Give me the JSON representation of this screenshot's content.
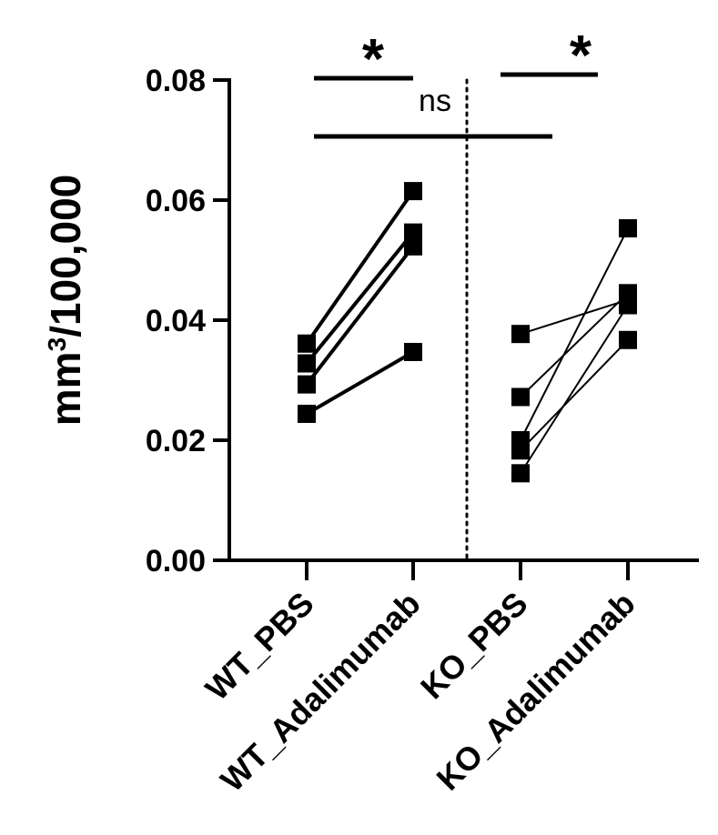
{
  "chart_data": {
    "type": "scatter",
    "subtype": "paired-dot-plot",
    "ylabel": "mm³/100,000",
    "ylabel_main": "mm",
    "ylabel_sup": "3",
    "ylabel_rest": "/100,000",
    "ylim": [
      0,
      0.08
    ],
    "yticks": [
      0.0,
      0.02,
      0.04,
      0.06,
      0.08
    ],
    "ytick_labels": [
      "0.00",
      "0.02",
      "0.04",
      "0.06",
      "0.08"
    ],
    "categories": [
      "WT_PBS",
      "WT_Adalimumab",
      "KO_PBS",
      "KO_Adalimumab"
    ],
    "groups": [
      {
        "name": "WT",
        "pairs": [
          [
            0.0361,
            0.0615
          ],
          [
            0.0328,
            0.0546
          ],
          [
            0.0293,
            0.0523
          ],
          [
            0.0244,
            0.0347
          ]
        ]
      },
      {
        "name": "KO",
        "pairs": [
          [
            0.0377,
            0.0434
          ],
          [
            0.0272,
            0.0445
          ],
          [
            0.02,
            0.0553
          ],
          [
            0.0183,
            0.0367
          ],
          [
            0.0145,
            0.0425
          ]
        ]
      }
    ],
    "annotations": [
      {
        "text": "*",
        "from": "WT_PBS",
        "to": "WT_Adalimumab"
      },
      {
        "text": "*",
        "from": "KO_PBS",
        "to": "KO_Adalimumab"
      },
      {
        "text": "ns",
        "from": "WT_PBS",
        "to": "KO_PBS"
      }
    ],
    "divider": "dotted vertical line between WT and KO groups",
    "grid": false,
    "legend": "none"
  }
}
